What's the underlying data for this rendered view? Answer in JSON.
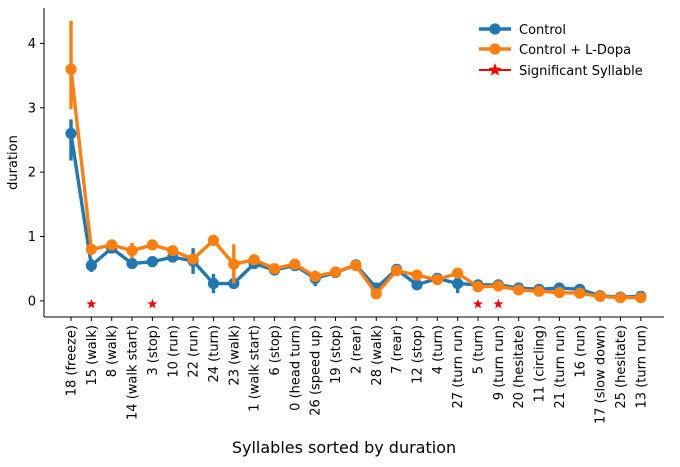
{
  "chart_data": {
    "type": "line",
    "title": "",
    "xlabel": "Syllables sorted by duration",
    "ylabel": "duration",
    "ylim": [
      -0.25,
      4.55
    ],
    "yticks": [
      0,
      1,
      2,
      3,
      4
    ],
    "grid": false,
    "legend_position": "top-right",
    "categories": [
      "18 (freeze)",
      "15 (walk)",
      "8 (walk)",
      "14 (walk start)",
      "3 (stop)",
      "10 (run)",
      "22 (run)",
      "24 (turn)",
      "23 (walk)",
      "1 (walk start)",
      "6 (stop)",
      "0 (head turn)",
      "26 (speed up)",
      "19 (stop)",
      "2 (rear)",
      "28 (walk)",
      "7 (rear)",
      "12 (stop)",
      "4 (turn)",
      "27 (turn run)",
      "5 (turn)",
      "9 (turn run)",
      "20 (hesitate)",
      "11 (circling)",
      "21 (turn run)",
      "16 (run)",
      "17 (slow down)",
      "25 (hesitate)",
      "13 (turn run)"
    ],
    "series": [
      {
        "name": "Control",
        "color": "#1f77b4",
        "values": [
          2.6,
          0.55,
          0.82,
          0.58,
          0.61,
          0.68,
          0.62,
          0.27,
          0.27,
          0.58,
          0.48,
          0.55,
          0.35,
          0.44,
          0.56,
          0.2,
          0.49,
          0.25,
          0.35,
          0.27,
          0.25,
          0.25,
          0.2,
          0.18,
          0.2,
          0.18,
          0.08,
          0.06,
          0.07
        ],
        "error_low": [
          2.18,
          0.45,
          0.75,
          0.52,
          0.56,
          0.62,
          0.42,
          0.12,
          0.2,
          0.52,
          0.43,
          0.5,
          0.23,
          0.38,
          0.52,
          0.15,
          0.44,
          0.2,
          0.3,
          0.12,
          0.2,
          0.2,
          0.16,
          0.14,
          0.16,
          0.14,
          0.05,
          0.03,
          0.04
        ],
        "error_high": [
          2.82,
          0.65,
          0.89,
          0.64,
          0.66,
          0.74,
          0.82,
          0.42,
          0.34,
          0.64,
          0.53,
          0.6,
          0.47,
          0.5,
          0.6,
          0.25,
          0.54,
          0.3,
          0.4,
          0.42,
          0.3,
          0.3,
          0.24,
          0.22,
          0.24,
          0.22,
          0.11,
          0.09,
          0.1
        ]
      },
      {
        "name": "Control + L-Dopa",
        "color": "#ff7f0e",
        "values": [
          3.6,
          0.8,
          0.87,
          0.78,
          0.87,
          0.78,
          0.65,
          0.94,
          0.57,
          0.64,
          0.5,
          0.57,
          0.38,
          0.45,
          0.55,
          0.11,
          0.47,
          0.4,
          0.33,
          0.43,
          0.22,
          0.23,
          0.17,
          0.15,
          0.13,
          0.12,
          0.07,
          0.05,
          0.05
        ],
        "error_low": [
          2.98,
          0.72,
          0.81,
          0.66,
          0.79,
          0.72,
          0.58,
          0.87,
          0.27,
          0.58,
          0.45,
          0.52,
          0.32,
          0.4,
          0.5,
          0.07,
          0.42,
          0.35,
          0.28,
          0.36,
          0.18,
          0.19,
          0.13,
          0.11,
          0.09,
          0.08,
          0.04,
          0.02,
          0.02
        ],
        "error_high": [
          4.35,
          0.88,
          0.93,
          0.9,
          0.95,
          0.84,
          0.72,
          1.01,
          0.88,
          0.7,
          0.55,
          0.62,
          0.44,
          0.5,
          0.6,
          0.15,
          0.52,
          0.45,
          0.38,
          0.5,
          0.26,
          0.27,
          0.21,
          0.19,
          0.17,
          0.16,
          0.1,
          0.08,
          0.08
        ]
      }
    ],
    "significant": {
      "name": "Significant Syllable",
      "color": "#ff0000",
      "categories": [
        "15 (walk)",
        "3 (stop)",
        "5 (turn)",
        "9 (turn run)"
      ],
      "y": -0.05
    }
  }
}
